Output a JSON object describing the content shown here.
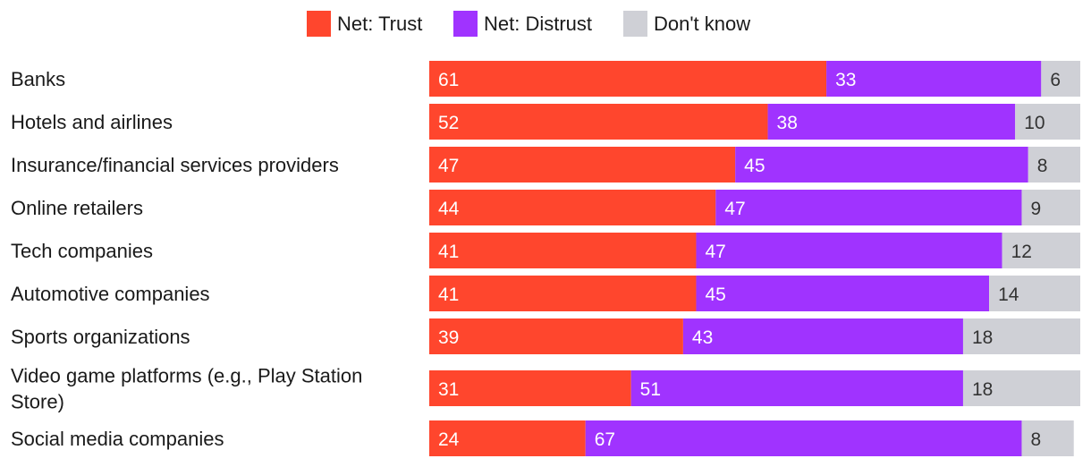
{
  "chart_data": {
    "type": "bar",
    "orientation": "horizontal",
    "stacked": true,
    "title": "",
    "xlabel": "",
    "ylabel": "",
    "xlim": [
      0,
      100
    ],
    "legend_position": "top-center",
    "grid": false,
    "categories": [
      "Banks",
      "Hotels and airlines",
      "Insurance/financial services providers",
      "Online retailers",
      "Tech companies",
      "Automotive companies",
      "Sports organizations",
      "Video game platforms (e.g., Play Station Store)",
      "Social media companies"
    ],
    "category_lines": [
      [
        "Banks"
      ],
      [
        "Hotels and airlines"
      ],
      [
        "Insurance/financial services providers"
      ],
      [
        "Online retailers"
      ],
      [
        "Tech companies"
      ],
      [
        "Automotive companies"
      ],
      [
        "Sports organizations"
      ],
      [
        "Video game platforms (e.g., Play Station",
        "Store)"
      ],
      [
        "Social media companies"
      ]
    ],
    "series": [
      {
        "name": "Net: Trust",
        "color": "#ff462d",
        "label_color": "#ffffff",
        "values": [
          61,
          52,
          47,
          44,
          41,
          41,
          39,
          31,
          24
        ]
      },
      {
        "name": "Net: Distrust",
        "color": "#a033ff",
        "label_color": "#ffffff",
        "values": [
          33,
          38,
          45,
          47,
          47,
          45,
          43,
          51,
          67
        ]
      },
      {
        "name": "Don't know",
        "color": "#cfd0d6",
        "label_color": "#333333",
        "values": [
          6,
          10,
          8,
          9,
          12,
          14,
          18,
          18,
          8
        ]
      }
    ]
  }
}
